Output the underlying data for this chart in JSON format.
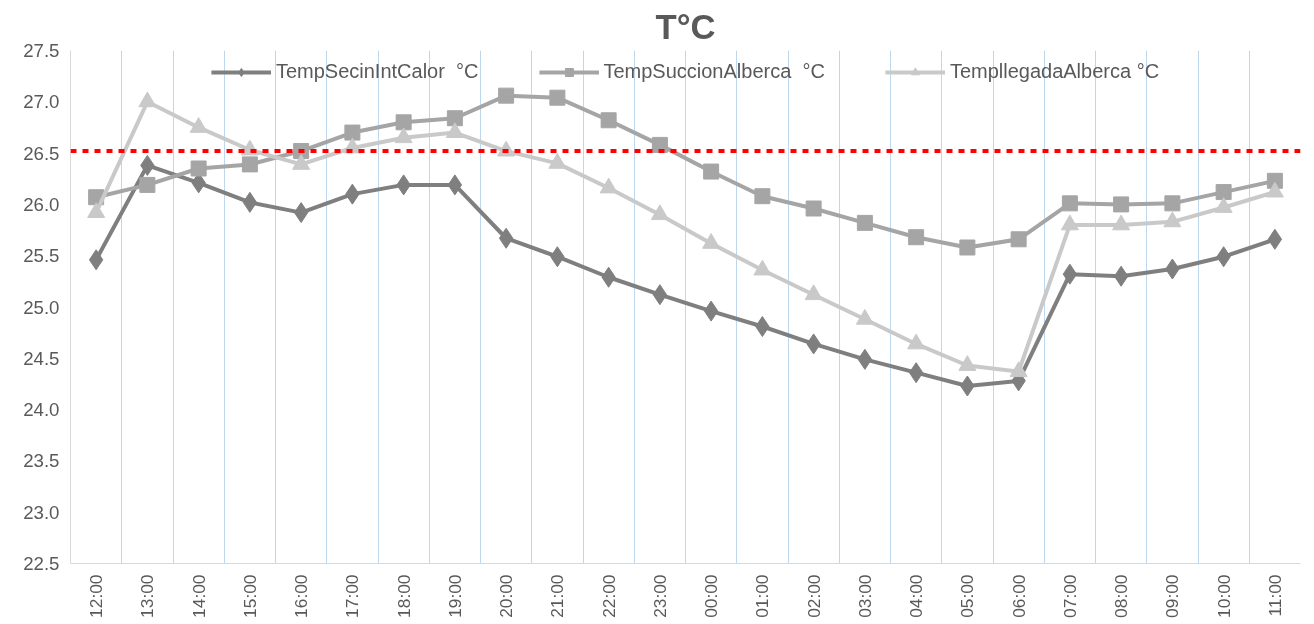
{
  "chart_data": {
    "type": "line",
    "title": "T°C",
    "categories": [
      "12:00",
      "13:00",
      "14:00",
      "15:00",
      "16:00",
      "17:00",
      "18:00",
      "19:00",
      "20:00",
      "21:00",
      "22:00",
      "23:00",
      "00:00",
      "01:00",
      "02:00",
      "03:00",
      "04:00",
      "05:00",
      "06:00",
      "07:00",
      "08:00",
      "09:00",
      "10:00",
      "11:00"
    ],
    "series": [
      {
        "name": "TempSecinIntCalor  °C",
        "color": "#7f7f7f",
        "marker": "diamond",
        "values": [
          25.46,
          26.38,
          26.21,
          26.02,
          25.92,
          26.1,
          26.19,
          26.19,
          25.67,
          25.49,
          25.29,
          25.12,
          24.96,
          24.81,
          24.64,
          24.49,
          24.36,
          24.23,
          24.28,
          25.32,
          25.3,
          25.37,
          25.49,
          25.66
        ]
      },
      {
        "name": "TempSuccionAlberca  °C",
        "color": "#a5a5a5",
        "marker": "square",
        "values": [
          26.07,
          26.19,
          26.35,
          26.39,
          26.52,
          26.7,
          26.8,
          26.84,
          27.06,
          27.04,
          26.82,
          26.58,
          26.32,
          26.08,
          25.96,
          25.82,
          25.68,
          25.58,
          25.66,
          26.01,
          26.0,
          26.01,
          26.12,
          26.23
        ]
      },
      {
        "name": "TempllegadaAlberca °C",
        "color": "#c9c9c9",
        "marker": "triangle",
        "values": [
          25.92,
          27.0,
          26.75,
          26.53,
          26.39,
          26.55,
          26.65,
          26.7,
          26.52,
          26.4,
          26.16,
          25.9,
          25.62,
          25.36,
          25.12,
          24.88,
          24.64,
          24.43,
          24.37,
          25.8,
          25.8,
          25.83,
          25.97,
          26.12
        ]
      }
    ],
    "ylim": [
      22.5,
      27.5
    ],
    "yticks": [
      {
        "value": 22.5,
        "label": "22.5"
      },
      {
        "value": 23,
        "label": "23.0"
      },
      {
        "value": 23.5,
        "label": "23.5"
      },
      {
        "value": 24,
        "label": "24.0"
      },
      {
        "value": 24.5,
        "label": "24.5"
      },
      {
        "value": 25,
        "label": "25.0"
      },
      {
        "value": 25.5,
        "label": "25.5"
      },
      {
        "value": 26,
        "label": "26.0"
      },
      {
        "value": 26.5,
        "label": "26.5"
      },
      {
        "value": 27,
        "label": "27.0"
      },
      {
        "value": 27.5,
        "label": "27.5"
      }
    ],
    "ref_lines": [
      {
        "axis": "y",
        "value": 26.52,
        "label": null,
        "color": "#ff0000",
        "line_style": "dashed"
      }
    ],
    "grid": "x",
    "legend": "top",
    "line_style": "solid"
  }
}
